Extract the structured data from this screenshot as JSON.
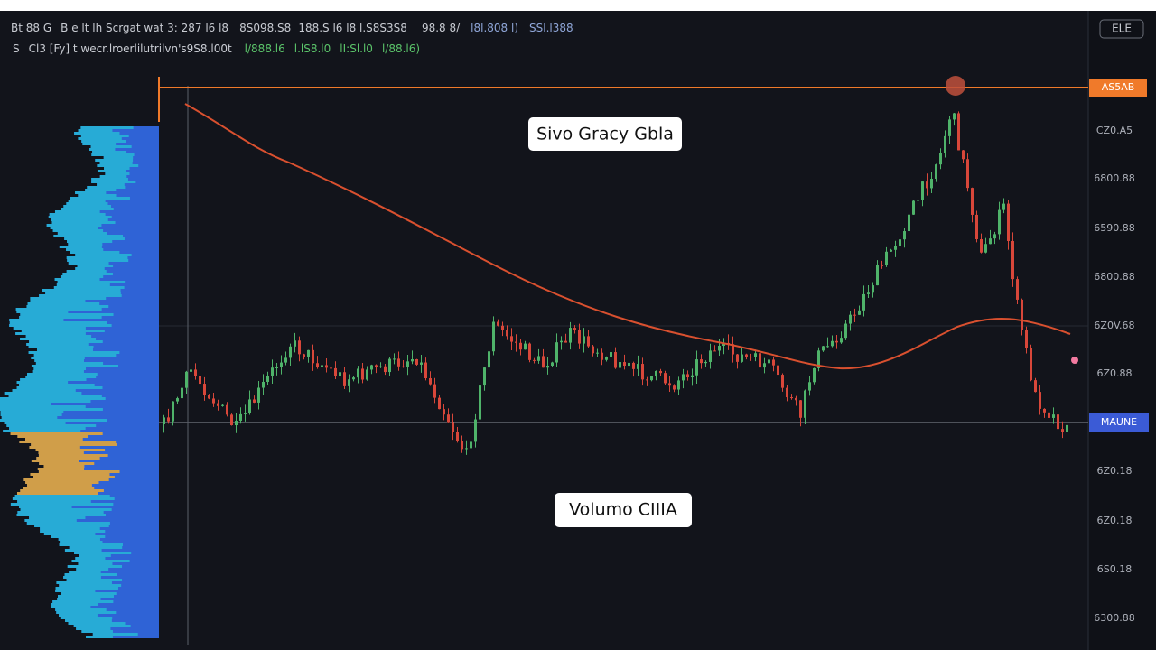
{
  "header": {
    "line1": [
      "Bt 88 G",
      "B e lt lh Scrgat wat 3: 287 l6 l8",
      "8S098.S8",
      "188.S l6 l8 l.S8S3S8",
      "98.8 8/",
      "l8l.808 l)",
      "SSl.l388"
    ],
    "line2": [
      "S",
      "Cl3 [Fy] t wecr.lroerlilutrilvn's9S8.l00t",
      "l/888.l6",
      "l.lS8.l0",
      "lI:Sl.l0",
      "l/88.l6)"
    ]
  },
  "toolbar": {
    "button": "ELE"
  },
  "price_axis": {
    "top_badge": "AS5AB",
    "labels": [
      "CZ0.A5",
      "6800.88",
      "6590.88",
      "6800.88",
      "6Z0V.68",
      "6Z0.88",
      "6Z0.18",
      "6Z0.18",
      "6S0.18",
      "6300.88"
    ],
    "current_badge": "MAUNE"
  },
  "annotations": [
    "Sivo Gracy Gbla",
    "Volumo CIIIA"
  ]
}
